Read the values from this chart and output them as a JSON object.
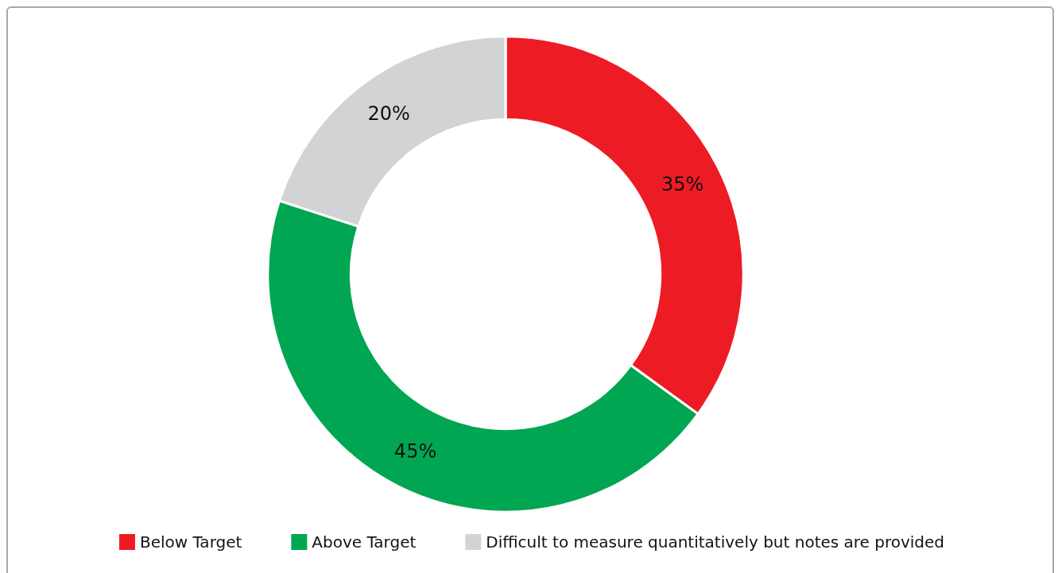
{
  "chart_data": {
    "type": "donut",
    "categories": [
      "Below Target",
      "Above Target",
      "Difficult to measure quantitatively but notes are provided"
    ],
    "values": [
      35,
      45,
      20
    ],
    "colors": [
      "#ed1c24",
      "#00a651",
      "#d1d3d4"
    ],
    "value_labels": [
      "35%",
      "45%",
      "20%"
    ],
    "legend": "bottom"
  }
}
